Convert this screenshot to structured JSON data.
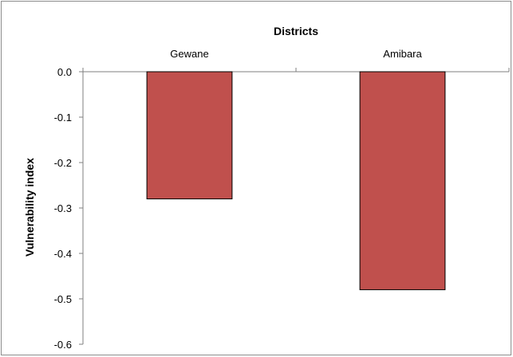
{
  "chart_data": {
    "type": "bar",
    "title": "",
    "xlabel": "Districts",
    "ylabel": "Vulnerability index",
    "categories": [
      "Gewane",
      "Amibara"
    ],
    "values": [
      -0.28,
      -0.48
    ],
    "ylim": [
      -0.6,
      0.0
    ],
    "yticks": [
      "0.0",
      "-0.1",
      "-0.2",
      "-0.3",
      "-0.4",
      "-0.5",
      "-0.6"
    ],
    "x_axis_position": "top",
    "grid": false,
    "legend": "none",
    "bar_color": "#c0504d"
  }
}
